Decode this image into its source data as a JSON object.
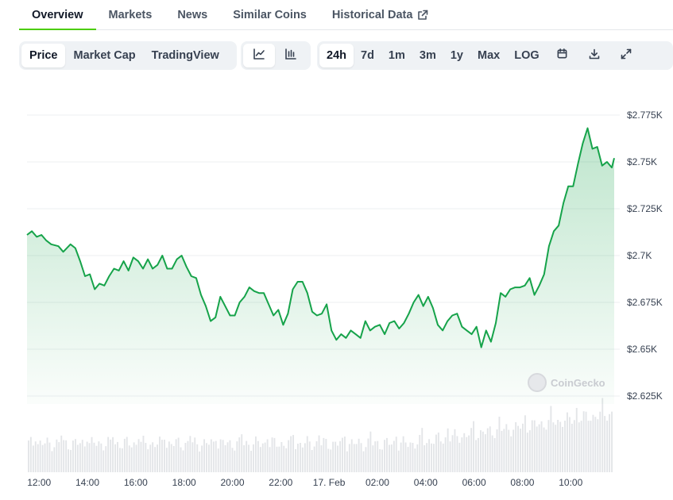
{
  "tabs": [
    {
      "label": "Overview",
      "active": true
    },
    {
      "label": "Markets",
      "active": false
    },
    {
      "label": "News",
      "active": false
    },
    {
      "label": "Similar Coins",
      "active": false
    },
    {
      "label": "Historical Data",
      "active": false,
      "external": true
    }
  ],
  "toolbar": {
    "chart_types": [
      {
        "label": "Price",
        "active": true
      },
      {
        "label": "Market Cap",
        "active": false
      },
      {
        "label": "TradingView",
        "active": false
      }
    ],
    "views": [
      {
        "icon": "line-chart-icon",
        "active": true
      },
      {
        "icon": "candlestick-chart-icon",
        "active": false
      }
    ],
    "ranges": [
      {
        "label": "24h",
        "active": true
      },
      {
        "label": "7d",
        "active": false
      },
      {
        "label": "1m",
        "active": false
      },
      {
        "label": "3m",
        "active": false
      },
      {
        "label": "1y",
        "active": false
      },
      {
        "label": "Max",
        "active": false
      },
      {
        "label": "LOG",
        "active": false
      }
    ],
    "actions": [
      {
        "icon": "calendar-icon"
      },
      {
        "icon": "download-icon"
      },
      {
        "icon": "expand-icon"
      }
    ]
  },
  "watermark": "CoinGecko",
  "colors": {
    "line": "#16a34a",
    "accent": "#4bcc00",
    "grid": "#eceff2",
    "volume": "#e3e5e8"
  },
  "chart_data": {
    "type": "area",
    "x_ticks": [
      "12:00",
      "14:00",
      "16:00",
      "18:00",
      "20:00",
      "22:00",
      "17. Feb",
      "02:00",
      "04:00",
      "06:00",
      "08:00",
      "10:00"
    ],
    "y_ticks": [
      "$2.775K",
      "$2.75K",
      "$2.725K",
      "$2.7K",
      "$2.675K",
      "$2.65K",
      "$2.625K"
    ],
    "y_tick_values": [
      2775,
      2750,
      2725,
      2700,
      2675,
      2650,
      2625
    ],
    "ylim": [
      2625,
      2782
    ],
    "x_start_hour": 11.5,
    "x_end_hour": 35.8,
    "grid": true,
    "series": [
      {
        "values": [
          [
            11.5,
            2711
          ],
          [
            11.7,
            2713
          ],
          [
            11.9,
            2710
          ],
          [
            12.1,
            2711
          ],
          [
            12.3,
            2708
          ],
          [
            12.5,
            2706
          ],
          [
            12.8,
            2705
          ],
          [
            13.0,
            2702
          ],
          [
            13.3,
            2706
          ],
          [
            13.5,
            2704
          ],
          [
            13.7,
            2697
          ],
          [
            13.9,
            2689
          ],
          [
            14.1,
            2690
          ],
          [
            14.3,
            2682
          ],
          [
            14.5,
            2685
          ],
          [
            14.7,
            2684
          ],
          [
            14.9,
            2689
          ],
          [
            15.1,
            2693
          ],
          [
            15.3,
            2692
          ],
          [
            15.5,
            2697
          ],
          [
            15.7,
            2692
          ],
          [
            15.9,
            2699
          ],
          [
            16.1,
            2697
          ],
          [
            16.3,
            2693
          ],
          [
            16.5,
            2698
          ],
          [
            16.7,
            2693
          ],
          [
            16.9,
            2695
          ],
          [
            17.1,
            2700
          ],
          [
            17.3,
            2693
          ],
          [
            17.5,
            2693
          ],
          [
            17.7,
            2698
          ],
          [
            17.9,
            2700
          ],
          [
            18.1,
            2694
          ],
          [
            18.3,
            2689
          ],
          [
            18.5,
            2688
          ],
          [
            18.7,
            2679
          ],
          [
            18.9,
            2673
          ],
          [
            19.1,
            2665
          ],
          [
            19.3,
            2667
          ],
          [
            19.5,
            2678
          ],
          [
            19.7,
            2673
          ],
          [
            19.9,
            2668
          ],
          [
            20.1,
            2668
          ],
          [
            20.3,
            2675
          ],
          [
            20.5,
            2678
          ],
          [
            20.7,
            2683
          ],
          [
            20.9,
            2681
          ],
          [
            21.1,
            2680
          ],
          [
            21.3,
            2680
          ],
          [
            21.5,
            2674
          ],
          [
            21.7,
            2668
          ],
          [
            21.9,
            2671
          ],
          [
            22.1,
            2663
          ],
          [
            22.3,
            2669
          ],
          [
            22.5,
            2682
          ],
          [
            22.7,
            2686
          ],
          [
            22.9,
            2686
          ],
          [
            23.1,
            2680
          ],
          [
            23.3,
            2670
          ],
          [
            23.5,
            2668
          ],
          [
            23.7,
            2669
          ],
          [
            23.9,
            2674
          ],
          [
            24.1,
            2660
          ],
          [
            24.3,
            2655
          ],
          [
            24.5,
            2658
          ],
          [
            24.7,
            2656
          ],
          [
            24.9,
            2660
          ],
          [
            25.1,
            2658
          ],
          [
            25.3,
            2656
          ],
          [
            25.5,
            2665
          ],
          [
            25.7,
            2660
          ],
          [
            25.9,
            2662
          ],
          [
            26.1,
            2663
          ],
          [
            26.3,
            2658
          ],
          [
            26.5,
            2664
          ],
          [
            26.7,
            2665
          ],
          [
            26.9,
            2661
          ],
          [
            27.1,
            2664
          ],
          [
            27.3,
            2669
          ],
          [
            27.5,
            2675
          ],
          [
            27.7,
            2679
          ],
          [
            27.9,
            2673
          ],
          [
            28.1,
            2678
          ],
          [
            28.3,
            2672
          ],
          [
            28.5,
            2663
          ],
          [
            28.7,
            2660
          ],
          [
            28.9,
            2665
          ],
          [
            29.1,
            2668
          ],
          [
            29.3,
            2669
          ],
          [
            29.5,
            2662
          ],
          [
            29.7,
            2660
          ],
          [
            29.9,
            2658
          ],
          [
            30.1,
            2662
          ],
          [
            30.3,
            2651
          ],
          [
            30.5,
            2660
          ],
          [
            30.7,
            2654
          ],
          [
            30.9,
            2664
          ],
          [
            31.1,
            2680
          ],
          [
            31.3,
            2678
          ],
          [
            31.5,
            2682
          ],
          [
            31.7,
            2683
          ],
          [
            31.9,
            2683
          ],
          [
            32.1,
            2684
          ],
          [
            32.3,
            2688
          ],
          [
            32.5,
            2679
          ],
          [
            32.7,
            2684
          ],
          [
            32.9,
            2690
          ],
          [
            33.1,
            2705
          ],
          [
            33.3,
            2713
          ],
          [
            33.5,
            2716
          ],
          [
            33.7,
            2728
          ],
          [
            33.9,
            2737
          ],
          [
            34.1,
            2737
          ],
          [
            34.3,
            2749
          ],
          [
            34.5,
            2760
          ],
          [
            34.7,
            2768
          ],
          [
            34.9,
            2757
          ],
          [
            35.1,
            2758
          ],
          [
            35.3,
            2748
          ],
          [
            35.5,
            2750
          ],
          [
            35.7,
            2747
          ],
          [
            35.8,
            2752
          ]
        ]
      }
    ]
  }
}
